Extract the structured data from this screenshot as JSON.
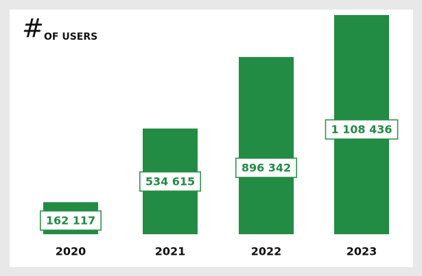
{
  "chart_data": {
    "type": "bar",
    "title": "#",
    "subtitle": "OF USERS",
    "categories": [
      "2020",
      "2021",
      "2022",
      "2023"
    ],
    "values": [
      162117,
      534615,
      896342,
      1108436
    ],
    "value_labels": [
      "162 117",
      "534 615",
      "896 342",
      "1 108 436"
    ],
    "color": "#228b44"
  }
}
